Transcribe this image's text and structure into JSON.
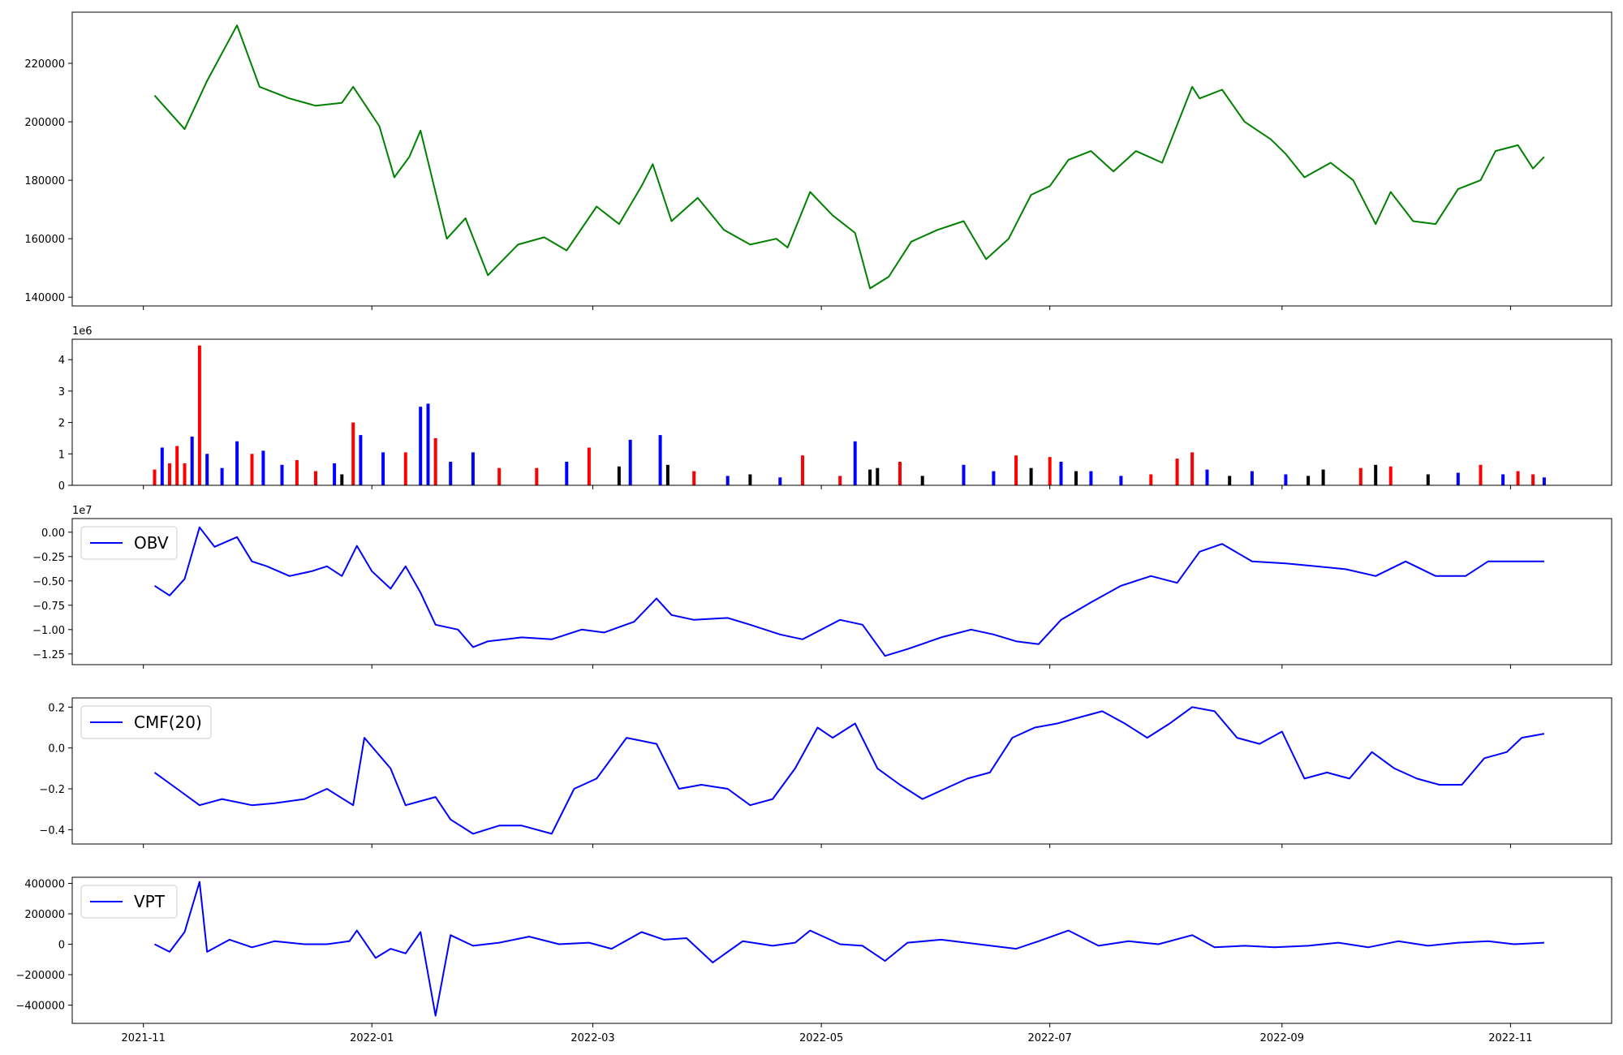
{
  "chart_data": [
    {
      "panel": "price",
      "type": "line",
      "color": "#008000",
      "x_dates": [
        "2021-11-04",
        "2021-11-12",
        "2021-11-18",
        "2021-11-26",
        "2021-12-02",
        "2021-12-10",
        "2021-12-17",
        "2021-12-24",
        "2021-12-27",
        "2022-01-03",
        "2022-01-07",
        "2022-01-11",
        "2022-01-14",
        "2022-01-21",
        "2022-01-26",
        "2022-02-01",
        "2022-02-09",
        "2022-02-16",
        "2022-02-22",
        "2022-03-02",
        "2022-03-08",
        "2022-03-14",
        "2022-03-17",
        "2022-03-22",
        "2022-03-29",
        "2022-04-05",
        "2022-04-12",
        "2022-04-19",
        "2022-04-22",
        "2022-04-28",
        "2022-05-04",
        "2022-05-10",
        "2022-05-14",
        "2022-05-19",
        "2022-05-25",
        "2022-06-01",
        "2022-06-08",
        "2022-06-14",
        "2022-06-20",
        "2022-06-26",
        "2022-07-01",
        "2022-07-06",
        "2022-07-12",
        "2022-07-18",
        "2022-07-24",
        "2022-07-31",
        "2022-08-04",
        "2022-08-08",
        "2022-08-10",
        "2022-08-16",
        "2022-08-22",
        "2022-08-29",
        "2022-09-02",
        "2022-09-07",
        "2022-09-14",
        "2022-09-20",
        "2022-09-26",
        "2022-09-30",
        "2022-10-06",
        "2022-10-12",
        "2022-10-18",
        "2022-10-24",
        "2022-10-28",
        "2022-11-03",
        "2022-11-07",
        "2022-11-10"
      ],
      "values": [
        209000,
        197500,
        214000,
        233000,
        212000,
        208000,
        205500,
        206500,
        212000,
        198500,
        181000,
        188000,
        197000,
        160000,
        167000,
        147500,
        158000,
        160500,
        156000,
        171000,
        165000,
        178000,
        185500,
        166000,
        174000,
        163000,
        158000,
        160000,
        157000,
        176000,
        168000,
        162000,
        143000,
        147000,
        159000,
        163000,
        166000,
        153000,
        160000,
        175000,
        178000,
        187000,
        190000,
        183000,
        190000,
        186000,
        199000,
        212000,
        208000,
        211000,
        200000,
        194000,
        189000,
        181000,
        186000,
        180000,
        165000,
        176000,
        166000,
        165000,
        177000,
        180000,
        190000,
        192000,
        184000,
        188000
      ],
      "yticks": [
        "140000",
        "160000",
        "180000",
        "200000",
        "220000"
      ],
      "ylim": [
        137000,
        237500
      ],
      "grid": false
    },
    {
      "panel": "volume",
      "type": "bar",
      "exponent_label": "1e6",
      "yticks": [
        "0",
        "1",
        "2",
        "3",
        "4"
      ],
      "ylim": [
        0,
        4.65
      ],
      "bars": [
        {
          "date": "2021-11-04",
          "value": 0.5,
          "color": "#ff0000"
        },
        {
          "date": "2021-11-06",
          "value": 1.2,
          "color": "#0000ff"
        },
        {
          "date": "2021-11-08",
          "value": 0.7,
          "color": "#ff0000"
        },
        {
          "date": "2021-11-10",
          "value": 1.25,
          "color": "#ff0000"
        },
        {
          "date": "2021-11-12",
          "value": 0.7,
          "color": "#ff0000"
        },
        {
          "date": "2021-11-14",
          "value": 1.55,
          "color": "#0000ff"
        },
        {
          "date": "2021-11-16",
          "value": 4.45,
          "color": "#ff0000"
        },
        {
          "date": "2021-11-18",
          "value": 1.0,
          "color": "#0000ff"
        },
        {
          "date": "2021-11-22",
          "value": 0.55,
          "color": "#0000ff"
        },
        {
          "date": "2021-11-26",
          "value": 1.4,
          "color": "#0000ff"
        },
        {
          "date": "2021-11-30",
          "value": 1.0,
          "color": "#ff0000"
        },
        {
          "date": "2021-12-03",
          "value": 1.1,
          "color": "#0000ff"
        },
        {
          "date": "2021-12-08",
          "value": 0.65,
          "color": "#0000ff"
        },
        {
          "date": "2021-12-12",
          "value": 0.8,
          "color": "#ff0000"
        },
        {
          "date": "2021-12-17",
          "value": 0.45,
          "color": "#ff0000"
        },
        {
          "date": "2021-12-22",
          "value": 0.7,
          "color": "#0000ff"
        },
        {
          "date": "2021-12-24",
          "value": 0.35,
          "color": "#000000"
        },
        {
          "date": "2021-12-27",
          "value": 2.0,
          "color": "#ff0000"
        },
        {
          "date": "2021-12-29",
          "value": 1.6,
          "color": "#0000ff"
        },
        {
          "date": "2022-01-04",
          "value": 1.05,
          "color": "#0000ff"
        },
        {
          "date": "2022-01-10",
          "value": 1.05,
          "color": "#ff0000"
        },
        {
          "date": "2022-01-14",
          "value": 2.5,
          "color": "#0000ff"
        },
        {
          "date": "2022-01-16",
          "value": 2.6,
          "color": "#0000ff"
        },
        {
          "date": "2022-01-18",
          "value": 1.5,
          "color": "#ff0000"
        },
        {
          "date": "2022-01-22",
          "value": 0.75,
          "color": "#0000ff"
        },
        {
          "date": "2022-01-28",
          "value": 1.05,
          "color": "#0000ff"
        },
        {
          "date": "2022-02-04",
          "value": 0.55,
          "color": "#ff0000"
        },
        {
          "date": "2022-02-14",
          "value": 0.55,
          "color": "#ff0000"
        },
        {
          "date": "2022-02-22",
          "value": 0.75,
          "color": "#0000ff"
        },
        {
          "date": "2022-02-28",
          "value": 1.2,
          "color": "#ff0000"
        },
        {
          "date": "2022-03-08",
          "value": 0.6,
          "color": "#000000"
        },
        {
          "date": "2022-03-11",
          "value": 1.45,
          "color": "#0000ff"
        },
        {
          "date": "2022-03-19",
          "value": 1.6,
          "color": "#0000ff"
        },
        {
          "date": "2022-03-21",
          "value": 0.65,
          "color": "#000000"
        },
        {
          "date": "2022-03-28",
          "value": 0.45,
          "color": "#ff0000"
        },
        {
          "date": "2022-04-06",
          "value": 0.3,
          "color": "#0000ff"
        },
        {
          "date": "2022-04-12",
          "value": 0.35,
          "color": "#000000"
        },
        {
          "date": "2022-04-20",
          "value": 0.25,
          "color": "#0000ff"
        },
        {
          "date": "2022-04-26",
          "value": 0.95,
          "color": "#ff0000"
        },
        {
          "date": "2022-05-06",
          "value": 0.3,
          "color": "#ff0000"
        },
        {
          "date": "2022-05-10",
          "value": 1.4,
          "color": "#0000ff"
        },
        {
          "date": "2022-05-14",
          "value": 0.5,
          "color": "#000000"
        },
        {
          "date": "2022-05-16",
          "value": 0.55,
          "color": "#000000"
        },
        {
          "date": "2022-05-22",
          "value": 0.75,
          "color": "#ff0000"
        },
        {
          "date": "2022-05-28",
          "value": 0.3,
          "color": "#000000"
        },
        {
          "date": "2022-06-08",
          "value": 0.65,
          "color": "#0000ff"
        },
        {
          "date": "2022-06-16",
          "value": 0.45,
          "color": "#0000ff"
        },
        {
          "date": "2022-06-22",
          "value": 0.95,
          "color": "#ff0000"
        },
        {
          "date": "2022-06-26",
          "value": 0.55,
          "color": "#000000"
        },
        {
          "date": "2022-07-01",
          "value": 0.9,
          "color": "#ff0000"
        },
        {
          "date": "2022-07-04",
          "value": 0.75,
          "color": "#0000ff"
        },
        {
          "date": "2022-07-08",
          "value": 0.45,
          "color": "#000000"
        },
        {
          "date": "2022-07-12",
          "value": 0.45,
          "color": "#0000ff"
        },
        {
          "date": "2022-07-20",
          "value": 0.3,
          "color": "#0000ff"
        },
        {
          "date": "2022-07-28",
          "value": 0.35,
          "color": "#ff0000"
        },
        {
          "date": "2022-08-04",
          "value": 0.85,
          "color": "#ff0000"
        },
        {
          "date": "2022-08-08",
          "value": 1.05,
          "color": "#ff0000"
        },
        {
          "date": "2022-08-12",
          "value": 0.5,
          "color": "#0000ff"
        },
        {
          "date": "2022-08-18",
          "value": 0.3,
          "color": "#000000"
        },
        {
          "date": "2022-08-24",
          "value": 0.45,
          "color": "#0000ff"
        },
        {
          "date": "2022-09-02",
          "value": 0.35,
          "color": "#0000ff"
        },
        {
          "date": "2022-09-08",
          "value": 0.3,
          "color": "#000000"
        },
        {
          "date": "2022-09-12",
          "value": 0.5,
          "color": "#000000"
        },
        {
          "date": "2022-09-22",
          "value": 0.55,
          "color": "#ff0000"
        },
        {
          "date": "2022-09-26",
          "value": 0.65,
          "color": "#000000"
        },
        {
          "date": "2022-09-30",
          "value": 0.6,
          "color": "#ff0000"
        },
        {
          "date": "2022-10-10",
          "value": 0.35,
          "color": "#000000"
        },
        {
          "date": "2022-10-18",
          "value": 0.4,
          "color": "#0000ff"
        },
        {
          "date": "2022-10-24",
          "value": 0.65,
          "color": "#ff0000"
        },
        {
          "date": "2022-10-30",
          "value": 0.35,
          "color": "#0000ff"
        },
        {
          "date": "2022-11-03",
          "value": 0.45,
          "color": "#ff0000"
        },
        {
          "date": "2022-11-07",
          "value": 0.35,
          "color": "#ff0000"
        },
        {
          "date": "2022-11-10",
          "value": 0.25,
          "color": "#0000ff"
        }
      ]
    },
    {
      "panel": "obv",
      "type": "line",
      "color": "#0000ff",
      "legend": "OBV",
      "exponent_label": "1e7",
      "yticks": [
        "0.00",
        "−0.25",
        "−0.50",
        "−0.75",
        "−1.00",
        "−1.25"
      ],
      "ylim": [
        -1.36,
        0.14
      ],
      "x_dates": [
        "2021-11-04",
        "2021-11-08",
        "2021-11-12",
        "2021-11-16",
        "2021-11-20",
        "2021-11-26",
        "2021-11-30",
        "2021-12-04",
        "2021-12-10",
        "2021-12-16",
        "2021-12-20",
        "2021-12-24",
        "2021-12-28",
        "2022-01-01",
        "2022-01-06",
        "2022-01-10",
        "2022-01-14",
        "2022-01-18",
        "2022-01-24",
        "2022-01-28",
        "2022-02-01",
        "2022-02-10",
        "2022-02-18",
        "2022-02-26",
        "2022-03-04",
        "2022-03-12",
        "2022-03-18",
        "2022-03-22",
        "2022-03-28",
        "2022-04-06",
        "2022-04-12",
        "2022-04-20",
        "2022-04-26",
        "2022-05-06",
        "2022-05-12",
        "2022-05-18",
        "2022-05-24",
        "2022-06-02",
        "2022-06-10",
        "2022-06-16",
        "2022-06-22",
        "2022-06-28",
        "2022-07-04",
        "2022-07-12",
        "2022-07-20",
        "2022-07-28",
        "2022-08-04",
        "2022-08-10",
        "2022-08-16",
        "2022-08-24",
        "2022-09-02",
        "2022-09-10",
        "2022-09-18",
        "2022-09-26",
        "2022-10-04",
        "2022-10-12",
        "2022-10-20",
        "2022-10-26",
        "2022-11-02",
        "2022-11-07",
        "2022-11-10"
      ],
      "values": [
        -0.55,
        -0.65,
        -0.48,
        0.05,
        -0.15,
        -0.05,
        -0.3,
        -0.35,
        -0.45,
        -0.4,
        -0.35,
        -0.45,
        -0.14,
        -0.4,
        -0.58,
        -0.35,
        -0.62,
        -0.95,
        -1.0,
        -1.18,
        -1.12,
        -1.08,
        -1.1,
        -1.0,
        -1.03,
        -0.92,
        -0.68,
        -0.85,
        -0.9,
        -0.88,
        -0.95,
        -1.05,
        -1.1,
        -0.9,
        -0.95,
        -1.27,
        -1.2,
        -1.08,
        -1.0,
        -1.05,
        -1.12,
        -1.15,
        -0.9,
        -0.72,
        -0.55,
        -0.45,
        -0.52,
        -0.2,
        -0.12,
        -0.3,
        -0.32,
        -0.35,
        -0.38,
        -0.45,
        -0.3,
        -0.45,
        -0.45,
        -0.3,
        -0.3,
        -0.3,
        -0.3
      ]
    },
    {
      "panel": "cmf",
      "type": "line",
      "color": "#0000ff",
      "legend": "CMF(20)",
      "yticks": [
        "0.2",
        "0.0",
        "−0.2",
        "−0.4"
      ],
      "ylim": [
        -0.47,
        0.245
      ],
      "x_dates": [
        "2021-11-04",
        "2021-11-10",
        "2021-11-16",
        "2021-11-22",
        "2021-11-30",
        "2021-12-06",
        "2021-12-14",
        "2021-12-20",
        "2021-12-27",
        "2021-12-30",
        "2022-01-06",
        "2022-01-10",
        "2022-01-18",
        "2022-01-22",
        "2022-01-28",
        "2022-02-04",
        "2022-02-10",
        "2022-02-18",
        "2022-02-24",
        "2022-03-02",
        "2022-03-10",
        "2022-03-18",
        "2022-03-24",
        "2022-03-30",
        "2022-04-06",
        "2022-04-12",
        "2022-04-18",
        "2022-04-24",
        "2022-04-30",
        "2022-05-04",
        "2022-05-10",
        "2022-05-16",
        "2022-05-22",
        "2022-05-28",
        "2022-06-03",
        "2022-06-09",
        "2022-06-15",
        "2022-06-21",
        "2022-06-27",
        "2022-07-03",
        "2022-07-09",
        "2022-07-15",
        "2022-07-21",
        "2022-07-27",
        "2022-08-02",
        "2022-08-08",
        "2022-08-14",
        "2022-08-20",
        "2022-08-26",
        "2022-09-01",
        "2022-09-07",
        "2022-09-13",
        "2022-09-19",
        "2022-09-25",
        "2022-10-01",
        "2022-10-07",
        "2022-10-13",
        "2022-10-19",
        "2022-10-25",
        "2022-10-31",
        "2022-11-04",
        "2022-11-10"
      ],
      "values": [
        -0.12,
        -0.2,
        -0.28,
        -0.25,
        -0.28,
        -0.27,
        -0.25,
        -0.2,
        -0.28,
        0.05,
        -0.1,
        -0.28,
        -0.24,
        -0.35,
        -0.42,
        -0.38,
        -0.38,
        -0.42,
        -0.2,
        -0.15,
        0.05,
        0.02,
        -0.2,
        -0.18,
        -0.2,
        -0.28,
        -0.25,
        -0.1,
        0.1,
        0.05,
        0.12,
        -0.1,
        -0.18,
        -0.25,
        -0.2,
        -0.15,
        -0.12,
        0.05,
        0.1,
        0.12,
        0.15,
        0.18,
        0.12,
        0.05,
        0.12,
        0.2,
        0.18,
        0.05,
        0.02,
        0.08,
        -0.15,
        -0.12,
        -0.15,
        -0.02,
        -0.1,
        -0.15,
        -0.18,
        -0.18,
        -0.05,
        -0.02,
        0.05,
        0.07
      ]
    },
    {
      "panel": "vpt",
      "type": "line",
      "color": "#0000ff",
      "legend": "VPT",
      "yticks": [
        "400000",
        "200000",
        "0",
        "−200000",
        "−400000"
      ],
      "ylim": [
        -520000,
        440000
      ],
      "x_dates": [
        "2021-11-04",
        "2021-11-08",
        "2021-11-12",
        "2021-11-16",
        "2021-11-18",
        "2021-11-24",
        "2021-11-30",
        "2021-12-06",
        "2021-12-14",
        "2021-12-20",
        "2021-12-26",
        "2021-12-28",
        "2022-01-02",
        "2022-01-06",
        "2022-01-10",
        "2022-01-14",
        "2022-01-18",
        "2022-01-22",
        "2022-01-28",
        "2022-02-04",
        "2022-02-12",
        "2022-02-20",
        "2022-02-28",
        "2022-03-06",
        "2022-03-14",
        "2022-03-20",
        "2022-03-26",
        "2022-04-02",
        "2022-04-10",
        "2022-04-18",
        "2022-04-24",
        "2022-04-28",
        "2022-05-06",
        "2022-05-12",
        "2022-05-18",
        "2022-05-24",
        "2022-06-02",
        "2022-06-12",
        "2022-06-22",
        "2022-06-28",
        "2022-07-06",
        "2022-07-14",
        "2022-07-22",
        "2022-07-30",
        "2022-08-08",
        "2022-08-14",
        "2022-08-22",
        "2022-08-30",
        "2022-09-08",
        "2022-09-16",
        "2022-09-24",
        "2022-10-02",
        "2022-10-10",
        "2022-10-18",
        "2022-10-26",
        "2022-11-02",
        "2022-11-10"
      ],
      "values": [
        0,
        -50000,
        80000,
        410000,
        -50000,
        30000,
        -20000,
        20000,
        0,
        0,
        20000,
        90000,
        -90000,
        -30000,
        -60000,
        80000,
        -470000,
        60000,
        -10000,
        10000,
        50000,
        0,
        10000,
        -30000,
        80000,
        30000,
        40000,
        -120000,
        20000,
        -10000,
        10000,
        90000,
        0,
        -10000,
        -110000,
        10000,
        30000,
        0,
        -30000,
        20000,
        90000,
        -10000,
        20000,
        0,
        60000,
        -20000,
        -10000,
        -20000,
        -10000,
        10000,
        -20000,
        20000,
        -10000,
        10000,
        20000,
        0,
        10000
      ]
    }
  ],
  "x_axis": {
    "tick_labels": [
      "2021-11",
      "2022-01",
      "2022-03",
      "2022-05",
      "2022-07",
      "2022-09",
      "2022-11"
    ],
    "tick_dates": [
      "2021-11-01",
      "2022-01-01",
      "2022-03-01",
      "2022-05-01",
      "2022-07-01",
      "2022-09-01",
      "2022-11-01"
    ],
    "range": [
      "2021-10-13",
      "2022-11-28"
    ]
  }
}
